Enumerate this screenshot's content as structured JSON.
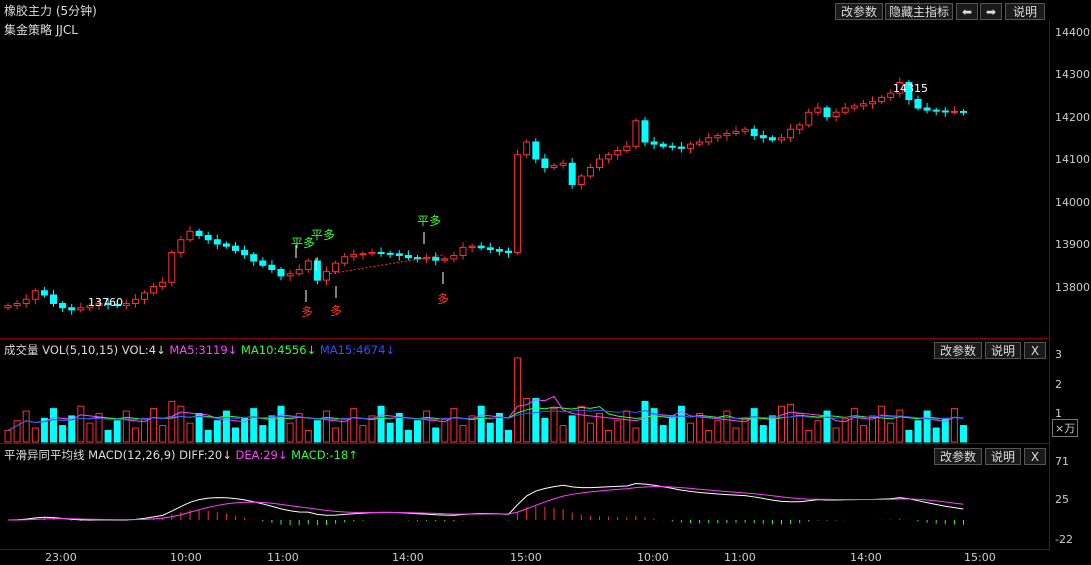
{
  "main": {
    "title": "橡胶主力 (5分钟)",
    "strategy": "集金策略 JJCL",
    "buttons": {
      "params": "改参数",
      "hide": "隐藏主指标",
      "prev": "⬅",
      "next": "➡",
      "help": "说明"
    },
    "yticks": [
      "14400",
      "14300",
      "14200",
      "14100",
      "14000",
      "13900",
      "13800"
    ],
    "low_label": "13760",
    "high_label": "14315",
    "signals": [
      "平多",
      "平多",
      "平多",
      "多",
      "多",
      "多"
    ]
  },
  "vol": {
    "label": "成交量 VOL(5,10,15) VOL:4↓",
    "ma5": "MA5:3119↓",
    "ma10": "MA10:4556↓",
    "ma15": "MA15:4674↓",
    "buttons": {
      "params": "改参数",
      "help": "说明",
      "close": "X"
    },
    "yticks": [
      "3",
      "2",
      "1"
    ],
    "unit": "×万"
  },
  "macd": {
    "label": "平滑异同平均线 MACD(12,26,9) DIFF:20↓",
    "dea": "DEA:29↓",
    "macd": "MACD:-18↑",
    "buttons": {
      "params": "改参数",
      "help": "说明",
      "close": "X"
    },
    "yticks": [
      "71",
      "25",
      "-22"
    ]
  },
  "xaxis": [
    "23:00",
    "10:00",
    "11:00",
    "14:00",
    "15:00",
    "10:00",
    "11:00",
    "14:00",
    "15:00"
  ],
  "colors": {
    "up": "#ff3030",
    "down": "#00ffff",
    "ma5": "#ff40ff",
    "ma10": "#30ff30",
    "ma15": "#3050ff",
    "grid": "#8a0000"
  },
  "chart_data": {
    "type": "candlestick",
    "close": [
      13775,
      13780,
      13790,
      13810,
      13800,
      13780,
      13770,
      13765,
      13770,
      13775,
      13780,
      13778,
      13775,
      13780,
      13790,
      13805,
      13820,
      13830,
      13900,
      13930,
      13950,
      13940,
      13930,
      13920,
      13915,
      13905,
      13895,
      13880,
      13870,
      13860,
      13845,
      13850,
      13860,
      13880,
      13835,
      13855,
      13875,
      13890,
      13895,
      13897,
      13900,
      13898,
      13897,
      13893,
      13888,
      13885,
      13888,
      13882,
      13885,
      13893,
      13912,
      13915,
      13911,
      13907,
      13903,
      13900,
      14130,
      14160,
      14120,
      14100,
      14105,
      14110,
      14060,
      14080,
      14100,
      14120,
      14130,
      14140,
      14150,
      14210,
      14160,
      14155,
      14150,
      14148,
      14145,
      14155,
      14160,
      14170,
      14175,
      14180,
      14185,
      14190,
      14175,
      14170,
      14165,
      14170,
      14190,
      14200,
      14230,
      14240,
      14220,
      14230,
      14240,
      14245,
      14250,
      14255,
      14265,
      14275,
      14300,
      14260,
      14240,
      14235,
      14233,
      14231,
      14232,
      14230
    ],
    "volume_max": 3,
    "macd_range": [
      -22,
      71
    ]
  }
}
